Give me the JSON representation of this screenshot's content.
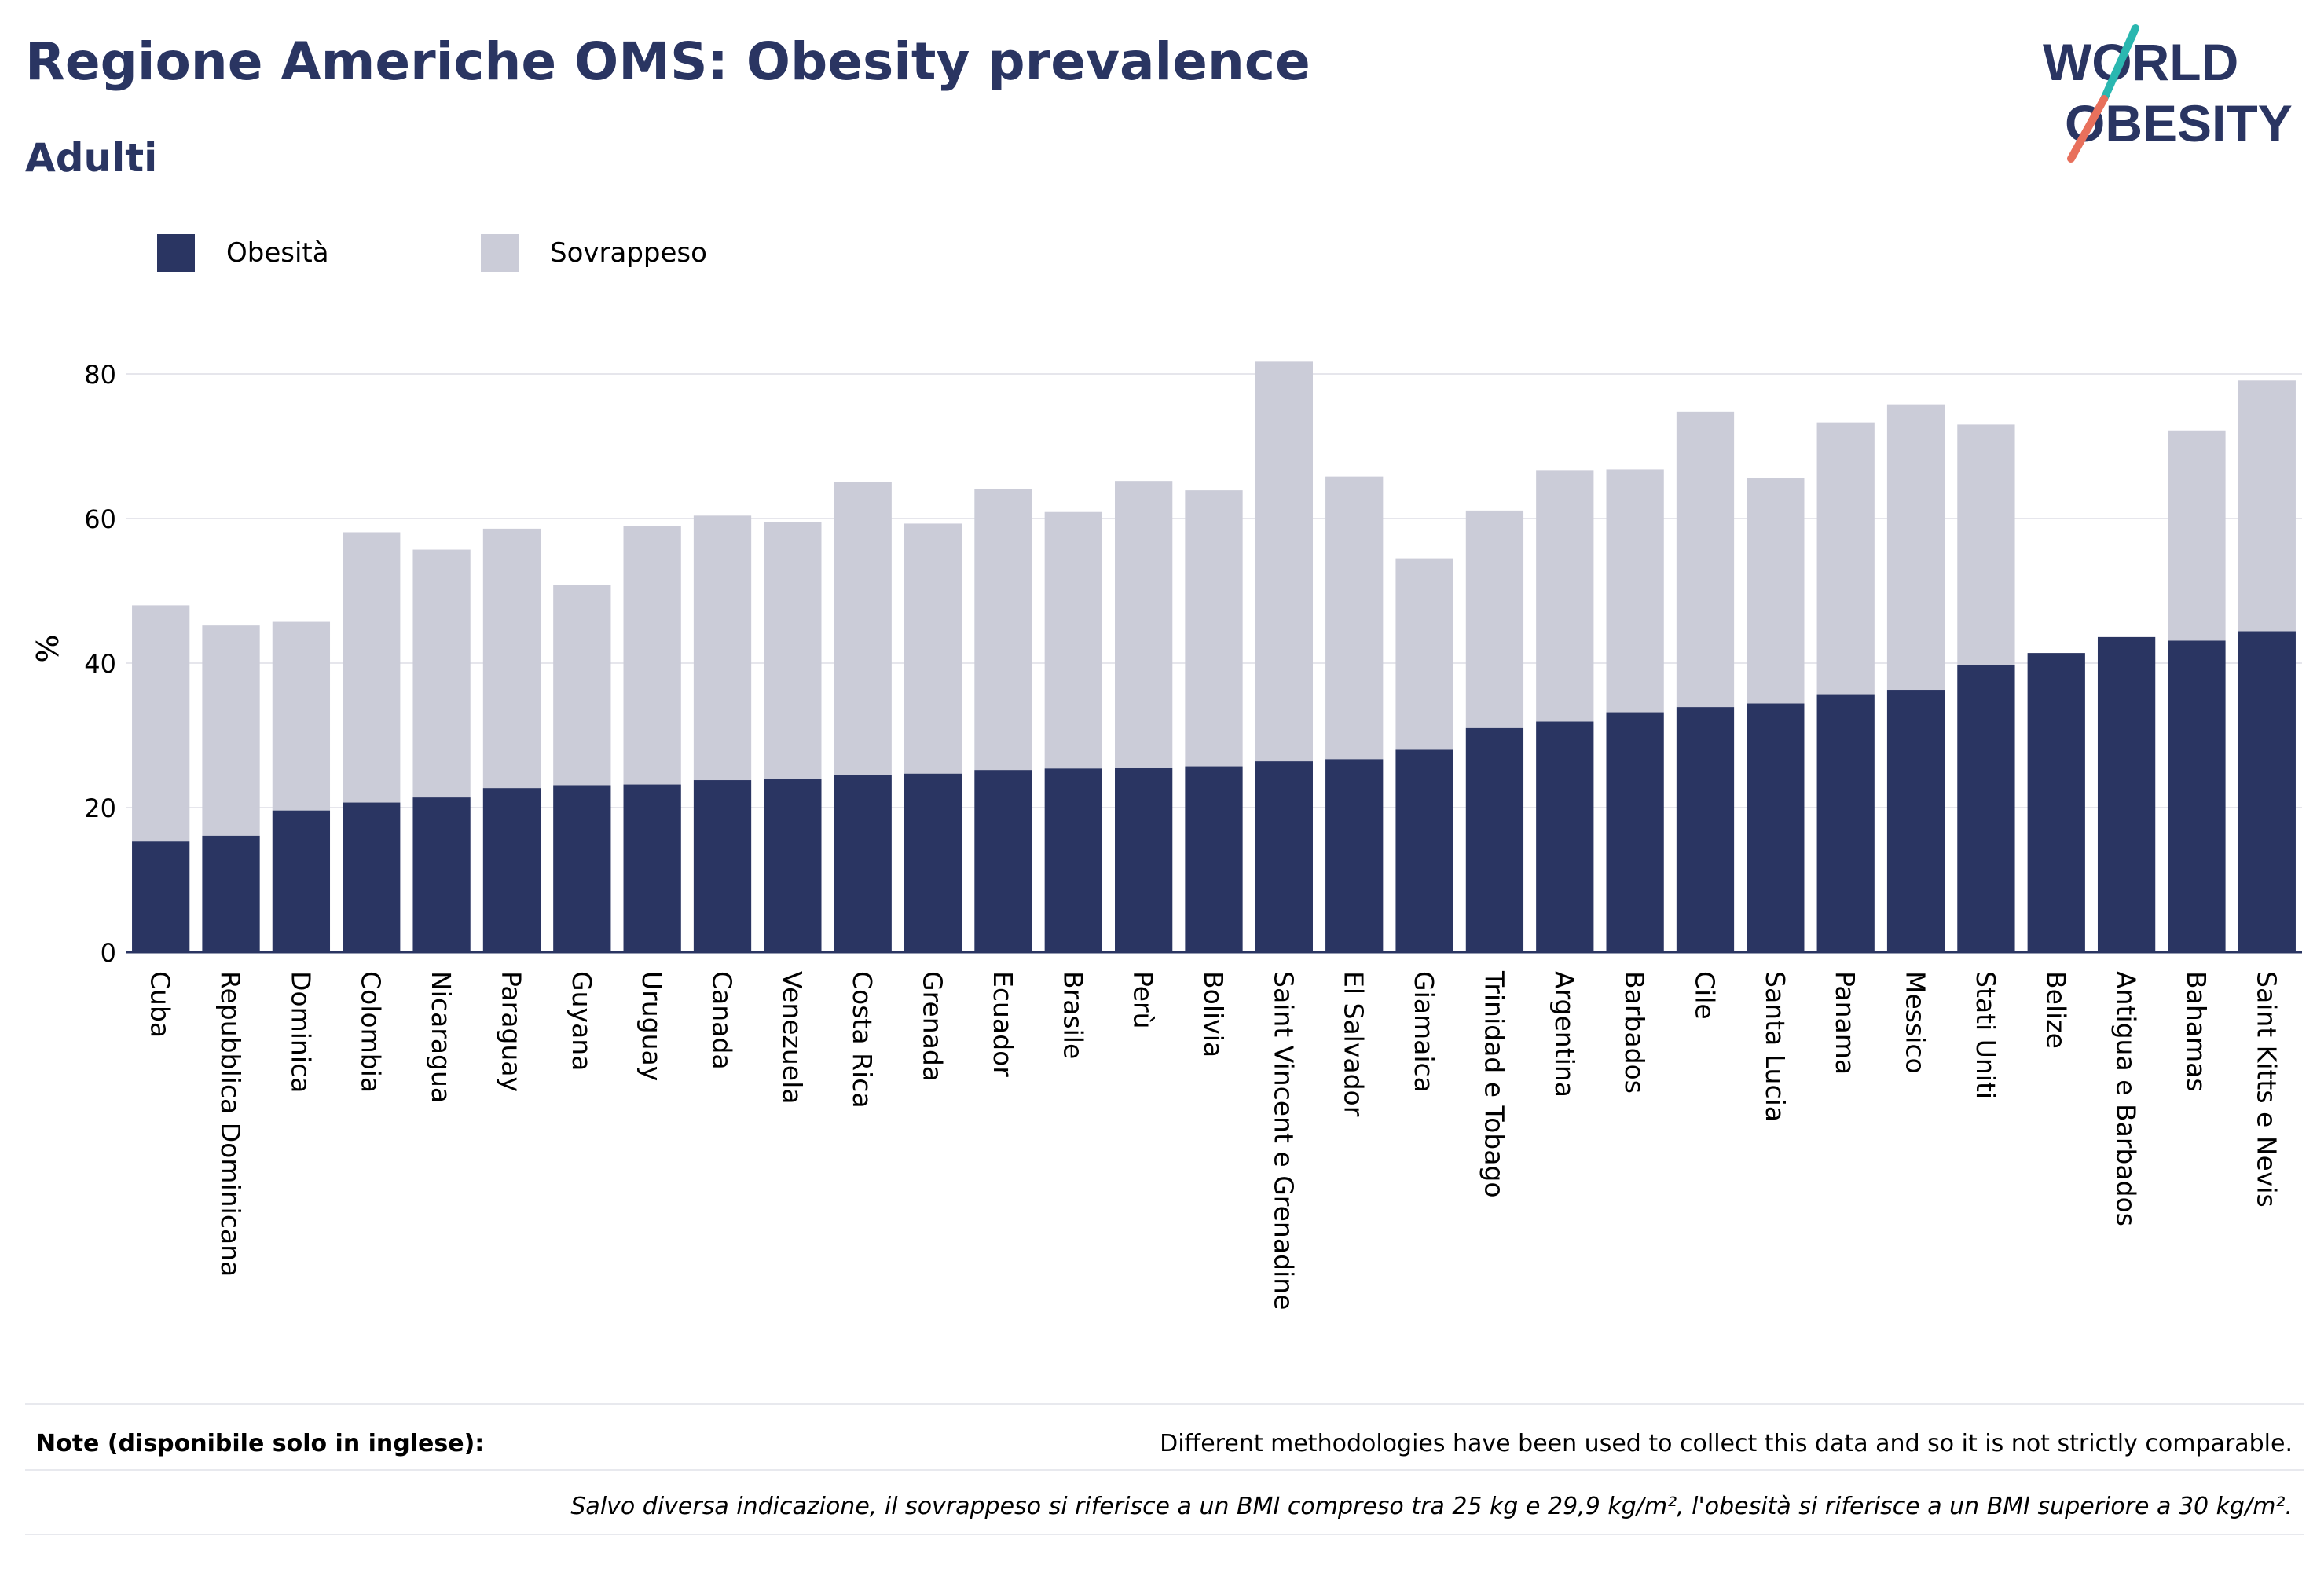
{
  "title": "Regione Americhe OMS: Obesity prevalence",
  "subtitle": "Adulti",
  "logo": {
    "line1": "WORLD",
    "line2": "OBESITY"
  },
  "notes": {
    "label": "Note (disponibile solo in inglese):",
    "text": "Different methodologies have been used to collect this data and so it is not strictly comparable.",
    "definition": "Salvo diversa indicazione, il sovrappeso si riferisce a un BMI compreso tra 25 kg e 29,9 kg/m², l'obesità si riferisce a un BMI superiore a 30 kg/m²."
  },
  "colors": {
    "obesity": "#2a3562",
    "overweight": "#cbccd8",
    "title": "#2a3562",
    "logo_teal": "#2ab7b0",
    "logo_coral": "#e8705c"
  },
  "chart_data": {
    "type": "bar",
    "stacked": true,
    "ylabel": "%",
    "xlabel": "",
    "ylim": [
      0,
      85
    ],
    "yticks": [
      0,
      20,
      40,
      60,
      80
    ],
    "grid": true,
    "legend_position": "top-left",
    "categories": [
      "Cuba",
      "Repubblica Dominicana",
      "Dominica",
      "Colombia",
      "Nicaragua",
      "Paraguay",
      "Guyana",
      "Uruguay",
      "Canada",
      "Venezuela",
      "Costa Rica",
      "Grenada",
      "Ecuador",
      "Brasile",
      "Perù",
      "Bolivia",
      "Saint Vincent e Grenadine",
      "El Salvador",
      "Giamaica",
      "Trinidad e Tobago",
      "Argentina",
      "Barbados",
      "Cile",
      "Santa Lucia",
      "Panama",
      "Messico",
      "Stati Uniti",
      "Belize",
      "Antigua e Barbados",
      "Bahamas",
      "Saint Kitts e Nevis"
    ],
    "series": [
      {
        "name": "Obesità",
        "values": [
          15.3,
          16.1,
          19.6,
          20.7,
          21.4,
          22.7,
          23.1,
          23.2,
          23.8,
          24.0,
          24.5,
          24.7,
          25.2,
          25.4,
          25.5,
          25.7,
          26.4,
          26.7,
          28.1,
          31.1,
          31.9,
          33.2,
          33.9,
          34.4,
          35.7,
          36.3,
          39.7,
          41.4,
          43.6,
          43.1,
          44.4
        ]
      },
      {
        "name": "Sovrappeso",
        "values": [
          32.7,
          29.1,
          26.1,
          37.4,
          34.3,
          35.9,
          27.7,
          35.8,
          36.6,
          35.5,
          40.5,
          34.6,
          38.9,
          35.5,
          39.7,
          38.2,
          55.3,
          39.1,
          26.4,
          30.0,
          34.8,
          33.6,
          40.9,
          31.2,
          37.6,
          39.5,
          33.3,
          0,
          0,
          29.1,
          34.7
        ]
      }
    ]
  }
}
